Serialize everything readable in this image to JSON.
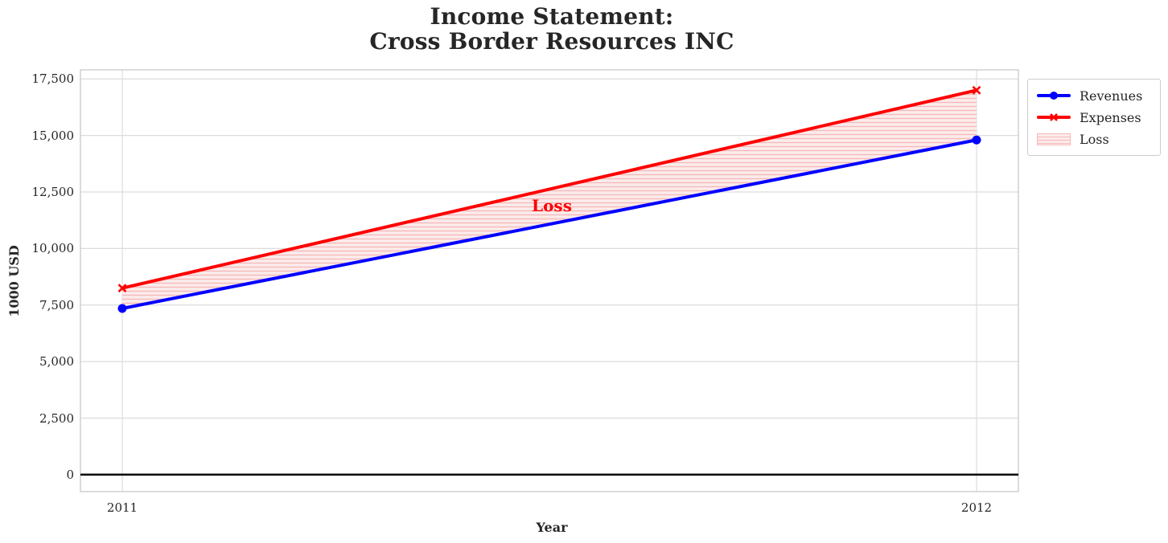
{
  "chart_data": {
    "type": "line",
    "title": "Income Statement:\nCross Border Resources INC",
    "xlabel": "Year",
    "ylabel": "1000 USD",
    "categories": [
      2011,
      2012
    ],
    "x_tick_labels": [
      "2011",
      "2012"
    ],
    "series": [
      {
        "name": "Revenues",
        "values": [
          7350,
          14800
        ],
        "color": "#0000ff",
        "marker": "circle"
      },
      {
        "name": "Expenses",
        "values": [
          8250,
          17000
        ],
        "color": "#ff0000",
        "marker": "x"
      }
    ],
    "loss_area": {
      "label": "Loss",
      "between": [
        "Revenues",
        "Expenses"
      ],
      "fill": "#fcebeb",
      "hatch_color": "#f5b8b8",
      "hatch_style": "horizontal-lines"
    },
    "annotation": {
      "text": "Loss",
      "color": "#ff0000"
    },
    "y_ticks": [
      0,
      2500,
      5000,
      7500,
      10000,
      12500,
      15000,
      17500
    ],
    "y_tick_labels": [
      "0",
      "2,500",
      "5,000",
      "7,500",
      "10,000",
      "12,500",
      "15,000",
      "17,500"
    ],
    "ylim": [
      -750,
      17900
    ],
    "grid": true,
    "legend": {
      "position": "outside-top-right",
      "entries": [
        "Revenues",
        "Expenses",
        "Loss"
      ]
    },
    "zero_line_color": "#000000",
    "grid_color": "#dcdcdc",
    "spine_color": "#cccccc",
    "text_color": "#262626"
  }
}
